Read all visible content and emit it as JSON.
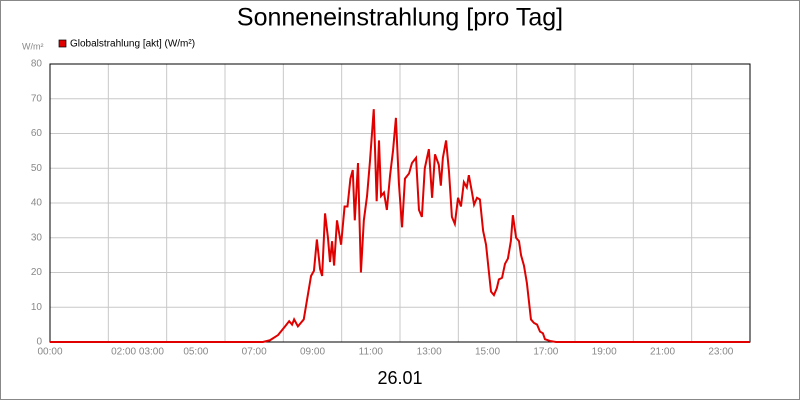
{
  "chart_data": {
    "type": "line",
    "title": "Sonneneinstrahlung [pro Tag]",
    "y_label": "W/m²",
    "x_label": "26.01",
    "xlim": [
      0,
      24
    ],
    "ylim": [
      0,
      80
    ],
    "xticks": [
      {
        "value": 0,
        "label": "00:00"
      },
      {
        "value": 3,
        "label": "02:00 03:00"
      },
      {
        "value": 5,
        "label": "05:00"
      },
      {
        "value": 7,
        "label": "07:00"
      },
      {
        "value": 9,
        "label": "09:00"
      },
      {
        "value": 11,
        "label": "11:00"
      },
      {
        "value": 13,
        "label": "13:00"
      },
      {
        "value": 15,
        "label": "15:00"
      },
      {
        "value": 17,
        "label": "17:00"
      },
      {
        "value": 19,
        "label": "19:00"
      },
      {
        "value": 21,
        "label": "21:00"
      },
      {
        "value": 23,
        "label": "23:00"
      }
    ],
    "xgrid": [
      2,
      4,
      6,
      8,
      10,
      12,
      14,
      16,
      18,
      20,
      22
    ],
    "yticks": [
      0,
      10,
      20,
      30,
      40,
      50,
      60,
      70,
      80
    ],
    "grid": true,
    "x": [
      0,
      7.3,
      7.54,
      7.82,
      8.06,
      8.2,
      8.3,
      8.37,
      8.5,
      8.7,
      8.85,
      8.95,
      9.05,
      9.15,
      9.26,
      9.33,
      9.43,
      9.53,
      9.6,
      9.67,
      9.74,
      9.84,
      9.98,
      10.1,
      10.2,
      10.3,
      10.38,
      10.45,
      10.56,
      10.66,
      10.76,
      10.87,
      10.97,
      11.1,
      11.2,
      11.28,
      11.35,
      11.45,
      11.55,
      11.66,
      11.76,
      11.86,
      11.96,
      12.07,
      12.17,
      12.31,
      12.41,
      12.55,
      12.65,
      12.75,
      12.85,
      12.99,
      13.1,
      13.2,
      13.33,
      13.4,
      13.47,
      13.58,
      13.68,
      13.78,
      13.88,
      13.99,
      14.09,
      14.19,
      14.29,
      14.36,
      14.47,
      14.54,
      14.64,
      14.74,
      14.85,
      14.95,
      15.05,
      15.12,
      15.22,
      15.32,
      15.39,
      15.5,
      15.6,
      15.7,
      15.8,
      15.87,
      15.98,
      16.08,
      16.15,
      16.25,
      16.35,
      16.49,
      16.59,
      16.7,
      16.8,
      16.9,
      16.97,
      17.14,
      17.35,
      24
    ],
    "series": [
      {
        "name": "Globalstrahlung [akt] (W/m²)",
        "color": "#e00000",
        "values": [
          0,
          0,
          0.5,
          2,
          4.5,
          6,
          5,
          6.5,
          4.5,
          6.5,
          14,
          19,
          20.5,
          29.5,
          21,
          19,
          37,
          30,
          23,
          29,
          22,
          35,
          28,
          39,
          39,
          47,
          49.5,
          35,
          51.5,
          20,
          35,
          42,
          52,
          67,
          40.5,
          58,
          42,
          43,
          38,
          48,
          55,
          64.5,
          46,
          33,
          47,
          48.5,
          51.5,
          53,
          38,
          36,
          50,
          55.5,
          41.5,
          54,
          51,
          45,
          53,
          58,
          49,
          36,
          34,
          41.5,
          39,
          46,
          44.5,
          48,
          43,
          39.5,
          41.5,
          41,
          32,
          28,
          20,
          14.5,
          13.5,
          15.5,
          18,
          18.5,
          22.5,
          24,
          29,
          36.5,
          30,
          29,
          25,
          22,
          17,
          6.5,
          5.5,
          5,
          3,
          2.5,
          0.8,
          0.3,
          0,
          0
        ]
      }
    ]
  }
}
